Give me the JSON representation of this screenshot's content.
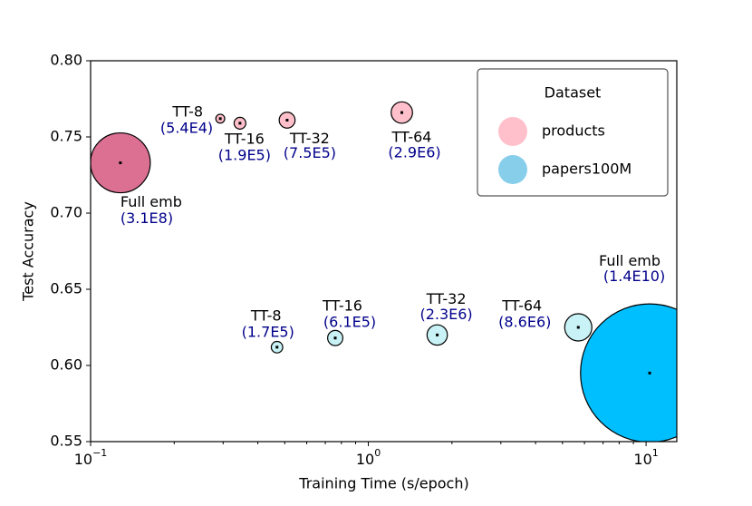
{
  "chart_data": {
    "type": "bubble",
    "xlabel": "Training Time (s/epoch)",
    "ylabel": "Test Accuracy",
    "xscale": "log",
    "xlim": [
      0.1,
      12.9
    ],
    "ylim": [
      0.55,
      0.8
    ],
    "xticks": [
      {
        "value": 0.1,
        "label": "10^−1"
      },
      {
        "value": 1,
        "label": "10^0"
      },
      {
        "value": 10,
        "label": "10^1"
      }
    ],
    "xminorticks": [
      0.2,
      0.3,
      0.4,
      0.5,
      0.6,
      0.7,
      0.8,
      0.9,
      2,
      3,
      4,
      5,
      6,
      7,
      8,
      9
    ],
    "yticks": [
      0.55,
      {
        "value": 0.6,
        "label": "0.60"
      },
      0.65,
      {
        "value": 0.7,
        "label": "0.70"
      },
      0.75,
      {
        "value": 0.8,
        "label": "0.80"
      }
    ],
    "legend": {
      "title": "Dataset",
      "position": "upper right"
    },
    "series": [
      {
        "name": "products",
        "color": "#ffc0cb",
        "labels": [
          "Full emb",
          "TT-8",
          "TT-16",
          "TT-32",
          "TT-64"
        ],
        "x": [
          0.128,
          0.293,
          0.345,
          0.51,
          1.32
        ],
        "values": [
          0.733,
          0.762,
          0.759,
          0.761,
          0.766
        ],
        "sizes": [
          310000000,
          54000,
          190000,
          750000,
          2900000
        ],
        "value_labels": [
          "(3.1E8)",
          "(5.4E4)",
          "(1.9E5)",
          "(7.5E5)",
          "(2.9E6)"
        ],
        "colors": [
          "#db7093",
          "#ffc0cb",
          "#ffc0cb",
          "#ffc0cb",
          "#ffc0cb"
        ]
      },
      {
        "name": "papers100M",
        "color": "#87ceeb",
        "labels": [
          "TT-8",
          "TT-16",
          "TT-32",
          "TT-64",
          "Full emb"
        ],
        "x": [
          0.469,
          0.76,
          1.77,
          5.7,
          10.3
        ],
        "values": [
          0.612,
          0.618,
          0.62,
          0.625,
          0.595
        ],
        "sizes": [
          170000,
          610000,
          2300000,
          8600000,
          14000000000
        ],
        "value_labels": [
          "(1.7E5)",
          "(6.1E5)",
          "(2.3E6)",
          "(8.6E6)",
          "(1.4E10)"
        ],
        "colors": [
          "#c8f2f5",
          "#c8f2f5",
          "#c8f2f5",
          "#c8f2f5",
          "#00bfff"
        ]
      }
    ]
  }
}
